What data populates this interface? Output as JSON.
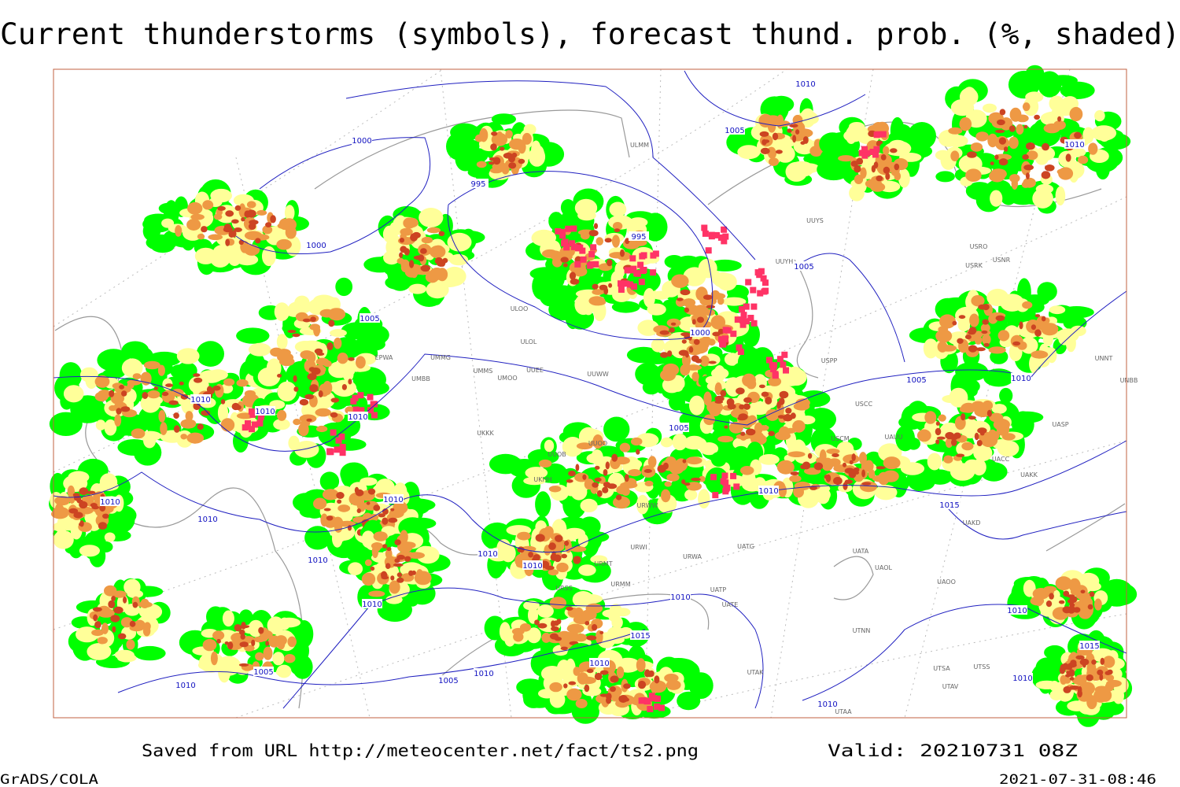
{
  "header": {
    "title": "Current thunderstorms (symbols), forecast thund. prob. (%, shaded)"
  },
  "footer": {
    "source": "Saved from URL http://meteocenter.net/fact/ts2.png",
    "valid": "Valid: 20210731 08Z",
    "software": "GrADS/COLA",
    "timestamp": "2021-07-31-08:46"
  },
  "isobar_labels": [
    1000,
    995,
    1000,
    995,
    1005,
    1000,
    1005,
    1005,
    1010,
    1010,
    1010,
    1010,
    1005,
    1005,
    1010,
    1010,
    1010,
    1010,
    1010,
    1010,
    1010,
    1010,
    1010,
    1015,
    1010,
    1015,
    1010,
    1005,
    1010,
    1005,
    1010,
    1010,
    1010,
    1010,
    1015,
    1010
  ],
  "stations": [
    "EPWA",
    "UMMG",
    "UMBB",
    "UMMS",
    "UMOO",
    "UUEE",
    "UUWW",
    "UKKK",
    "UUOO",
    "UUOB",
    "UKHH",
    "ULOL",
    "ULOO",
    "UUYS",
    "UUYH",
    "USPP",
    "USCC",
    "USCM",
    "UAUU",
    "USRK",
    "USNR",
    "USRO",
    "UNNT",
    "UNBB",
    "UASP",
    "UACC",
    "UAKK",
    "UAKD",
    "UATG",
    "UATA",
    "UAOL",
    "UAOO",
    "UATE",
    "UATP",
    "UTNN",
    "URWW",
    "URWI",
    "URWA",
    "URMT",
    "URMM",
    "URSS",
    "UTAK",
    "UTSS",
    "UTSA",
    "UTAA",
    "UTAV",
    "ULMM"
  ]
}
